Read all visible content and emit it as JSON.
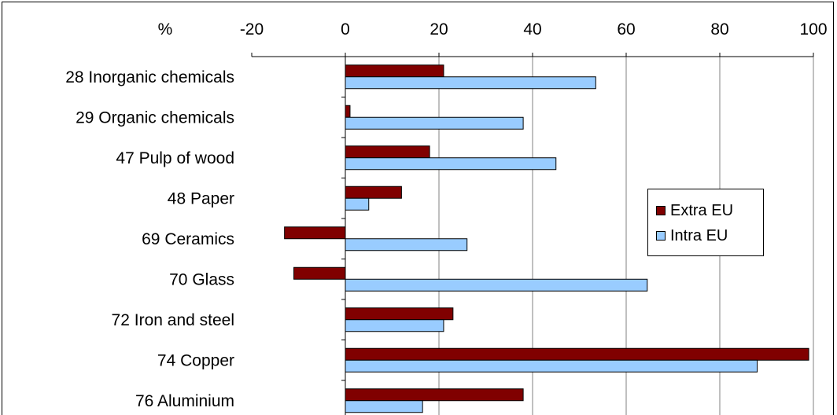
{
  "chart_data": {
    "type": "bar",
    "orientation": "horizontal",
    "unit_label": "%",
    "categories": [
      "28 Inorganic chemicals",
      "29 Organic chemicals",
      "47 Pulp of wood",
      "48 Paper",
      "69 Ceramics",
      "70 Glass",
      "72 Iron and steel",
      "74 Copper",
      "76 Aluminium"
    ],
    "series": [
      {
        "name": "Extra EU",
        "color": "#800000",
        "values": [
          21,
          1,
          18,
          12,
          -13,
          -11,
          23,
          99,
          38
        ]
      },
      {
        "name": "Intra EU",
        "color": "#99CCFF",
        "values": [
          53.5,
          38,
          45,
          5,
          26,
          64.5,
          21,
          88,
          16.5
        ]
      }
    ],
    "xlim": [
      -20,
      100
    ],
    "x_ticks": [
      "-20",
      "0",
      "20",
      "40",
      "60",
      "80",
      "100"
    ],
    "x_tick_values": [
      -20,
      0,
      20,
      40,
      60,
      80,
      100
    ],
    "x_axis_position": "top",
    "grid": true,
    "legend_position": "right"
  }
}
